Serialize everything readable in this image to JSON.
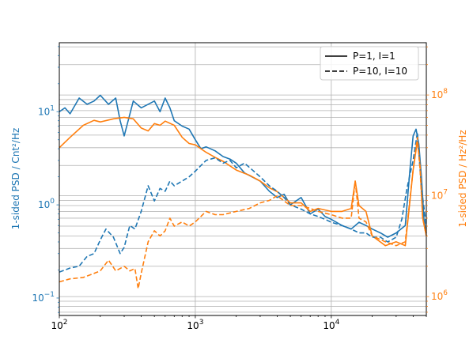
{
  "chart_data": {
    "type": "line",
    "title": "",
    "xlabel": "",
    "x_scale": "log",
    "xlim": [
      100,
      50000
    ],
    "grid": true,
    "legend_placement": "top-right",
    "legend": [
      {
        "label": "P=1, I=1",
        "style": "solid"
      },
      {
        "label": "P=10, I=10",
        "style": "dashed"
      }
    ],
    "x_tick_labels": [
      {
        "x": 100,
        "base": "10",
        "exp": "2"
      },
      {
        "x": 1000,
        "base": "10",
        "exp": "3"
      },
      {
        "x": 10000,
        "base": "10",
        "exp": "4"
      }
    ],
    "left_axis": {
      "label": "1-sided PSD / Cnt²/Hz",
      "scale": "log",
      "ylim": [
        0.065,
        55
      ],
      "color": "#1f77b4",
      "tick_labels": [
        {
          "y": 0.1,
          "base": "10",
          "exp": "−1"
        },
        {
          "y": 1,
          "base": "10",
          "exp": "0"
        },
        {
          "y": 10,
          "base": "10",
          "exp": "1"
        }
      ]
    },
    "right_axis": {
      "label": "1-sided PSD / Hz²/Hz",
      "scale": "log",
      "ylim": [
        650000,
        330000000
      ],
      "color": "#ff7f0e",
      "tick_labels": [
        {
          "y": 1000000,
          "base": "10",
          "exp": "6"
        },
        {
          "y": 10000000,
          "base": "10",
          "exp": "7"
        },
        {
          "y": 100000000,
          "base": "10",
          "exp": "8"
        }
      ]
    },
    "series": [
      {
        "name": "P=1, I=1",
        "axis": "left",
        "color": "#1f77b4",
        "style": "solid",
        "x": [
          100,
          110,
          120,
          140,
          160,
          180,
          200,
          230,
          260,
          280,
          300,
          350,
          400,
          450,
          500,
          550,
          600,
          650,
          700,
          800,
          900,
          1000,
          1100,
          1200,
          1400,
          1600,
          1800,
          2000,
          2300,
          2600,
          3000,
          3500,
          4000,
          4500,
          5000,
          6000,
          7000,
          8000,
          9000,
          10000,
          12000,
          14000,
          16000,
          18000,
          20000,
          23000,
          26000,
          30000,
          35000,
          38000,
          40000,
          42000,
          44000,
          46000,
          48000,
          50000
        ],
        "y": [
          10,
          11,
          9.5,
          14,
          12,
          13,
          15,
          12,
          14,
          8,
          5.5,
          13,
          11,
          12,
          13,
          10,
          14,
          11,
          8,
          7,
          6.5,
          5,
          4,
          4.2,
          3.8,
          3.3,
          3.1,
          2.8,
          2.2,
          2.0,
          1.8,
          1.4,
          1.2,
          1.3,
          1.0,
          1.2,
          0.8,
          0.9,
          0.75,
          0.7,
          0.6,
          0.55,
          0.65,
          0.6,
          0.55,
          0.5,
          0.45,
          0.5,
          0.6,
          2.5,
          5.5,
          6.5,
          4.5,
          2.0,
          0.7,
          0.5
        ]
      },
      {
        "name": "P=1, I=1",
        "axis": "right",
        "color": "#ff7f0e",
        "style": "solid",
        "x": [
          100,
          120,
          150,
          180,
          200,
          250,
          300,
          350,
          400,
          450,
          500,
          550,
          600,
          700,
          800,
          900,
          1000,
          1200,
          1400,
          1600,
          2000,
          2500,
          3000,
          3500,
          4000,
          5000,
          6000,
          7000,
          8000,
          10000,
          12000,
          14000,
          15000,
          16000,
          18000,
          20000,
          25000,
          30000,
          35000,
          40000,
          43000,
          45000,
          47000,
          50000
        ],
        "y": [
          30000000,
          38000000,
          50000000,
          56000000,
          54000000,
          58000000,
          60000000,
          58000000,
          47000000,
          44000000,
          52000000,
          50000000,
          55000000,
          50000000,
          38000000,
          33000000,
          32000000,
          27000000,
          24000000,
          22000000,
          18000000,
          16000000,
          14000000,
          12000000,
          11000000,
          8500000,
          8500000,
          7000000,
          7500000,
          7000000,
          7000000,
          7500000,
          14000000,
          8000000,
          7000000,
          4000000,
          3200000,
          3500000,
          3200000,
          18000000,
          35000000,
          20000000,
          6000000,
          4000000
        ]
      },
      {
        "name": "P=10, I=10",
        "axis": "left",
        "color": "#1f77b4",
        "style": "dashed",
        "x": [
          100,
          120,
          140,
          160,
          180,
          200,
          220,
          250,
          280,
          300,
          330,
          360,
          400,
          450,
          500,
          550,
          600,
          650,
          700,
          800,
          900,
          1000,
          1200,
          1400,
          1600,
          1800,
          2000,
          2300,
          2600,
          3000,
          3500,
          4000,
          4500,
          5000,
          6000,
          7000,
          8000,
          9000,
          10000,
          12000,
          14000,
          16000,
          18000,
          20000,
          23000,
          26000,
          30000,
          33000,
          36000,
          40000,
          43000,
          46000,
          50000
        ],
        "y": [
          0.19,
          0.21,
          0.22,
          0.28,
          0.3,
          0.42,
          0.55,
          0.45,
          0.3,
          0.35,
          0.6,
          0.55,
          0.85,
          1.6,
          1.1,
          1.5,
          1.4,
          1.8,
          1.6,
          1.8,
          2.0,
          2.3,
          3.0,
          3.2,
          2.8,
          3.0,
          2.5,
          2.8,
          2.4,
          2.0,
          1.6,
          1.4,
          1.2,
          1.0,
          0.9,
          0.8,
          0.75,
          0.7,
          0.65,
          0.6,
          0.55,
          0.5,
          0.5,
          0.45,
          0.45,
          0.4,
          0.45,
          0.7,
          1.5,
          3.0,
          6.0,
          1.5,
          0.6
        ]
      },
      {
        "name": "P=10, I=10",
        "axis": "right",
        "color": "#ff7f0e",
        "style": "dashed",
        "x": [
          100,
          120,
          150,
          180,
          200,
          230,
          260,
          300,
          330,
          360,
          380,
          400,
          450,
          500,
          550,
          600,
          650,
          700,
          800,
          900,
          1000,
          1200,
          1400,
          1600,
          2000,
          2500,
          3000,
          3500,
          4000,
          5000,
          6000,
          7000,
          8000,
          10000,
          12000,
          14000,
          15000,
          16000,
          18000,
          20000,
          25000,
          30000,
          35000,
          40000,
          43000,
          45000,
          47000,
          50000
        ],
        "y": [
          1400000,
          1500000,
          1550000,
          1700000,
          1800000,
          2300000,
          1800000,
          2000000,
          1800000,
          1900000,
          1200000,
          1700000,
          3500000,
          4500000,
          4000000,
          4500000,
          6000000,
          5000000,
          5500000,
          5000000,
          5500000,
          7000000,
          6500000,
          6500000,
          7000000,
          7500000,
          8500000,
          9000000,
          10000000,
          8000000,
          8000000,
          7500000,
          7000000,
          6500000,
          6000000,
          6000000,
          14000000,
          6000000,
          5500000,
          4000000,
          3500000,
          3200000,
          3500000,
          18000000,
          38000000,
          18000000,
          6000000,
          4000000
        ]
      }
    ]
  }
}
